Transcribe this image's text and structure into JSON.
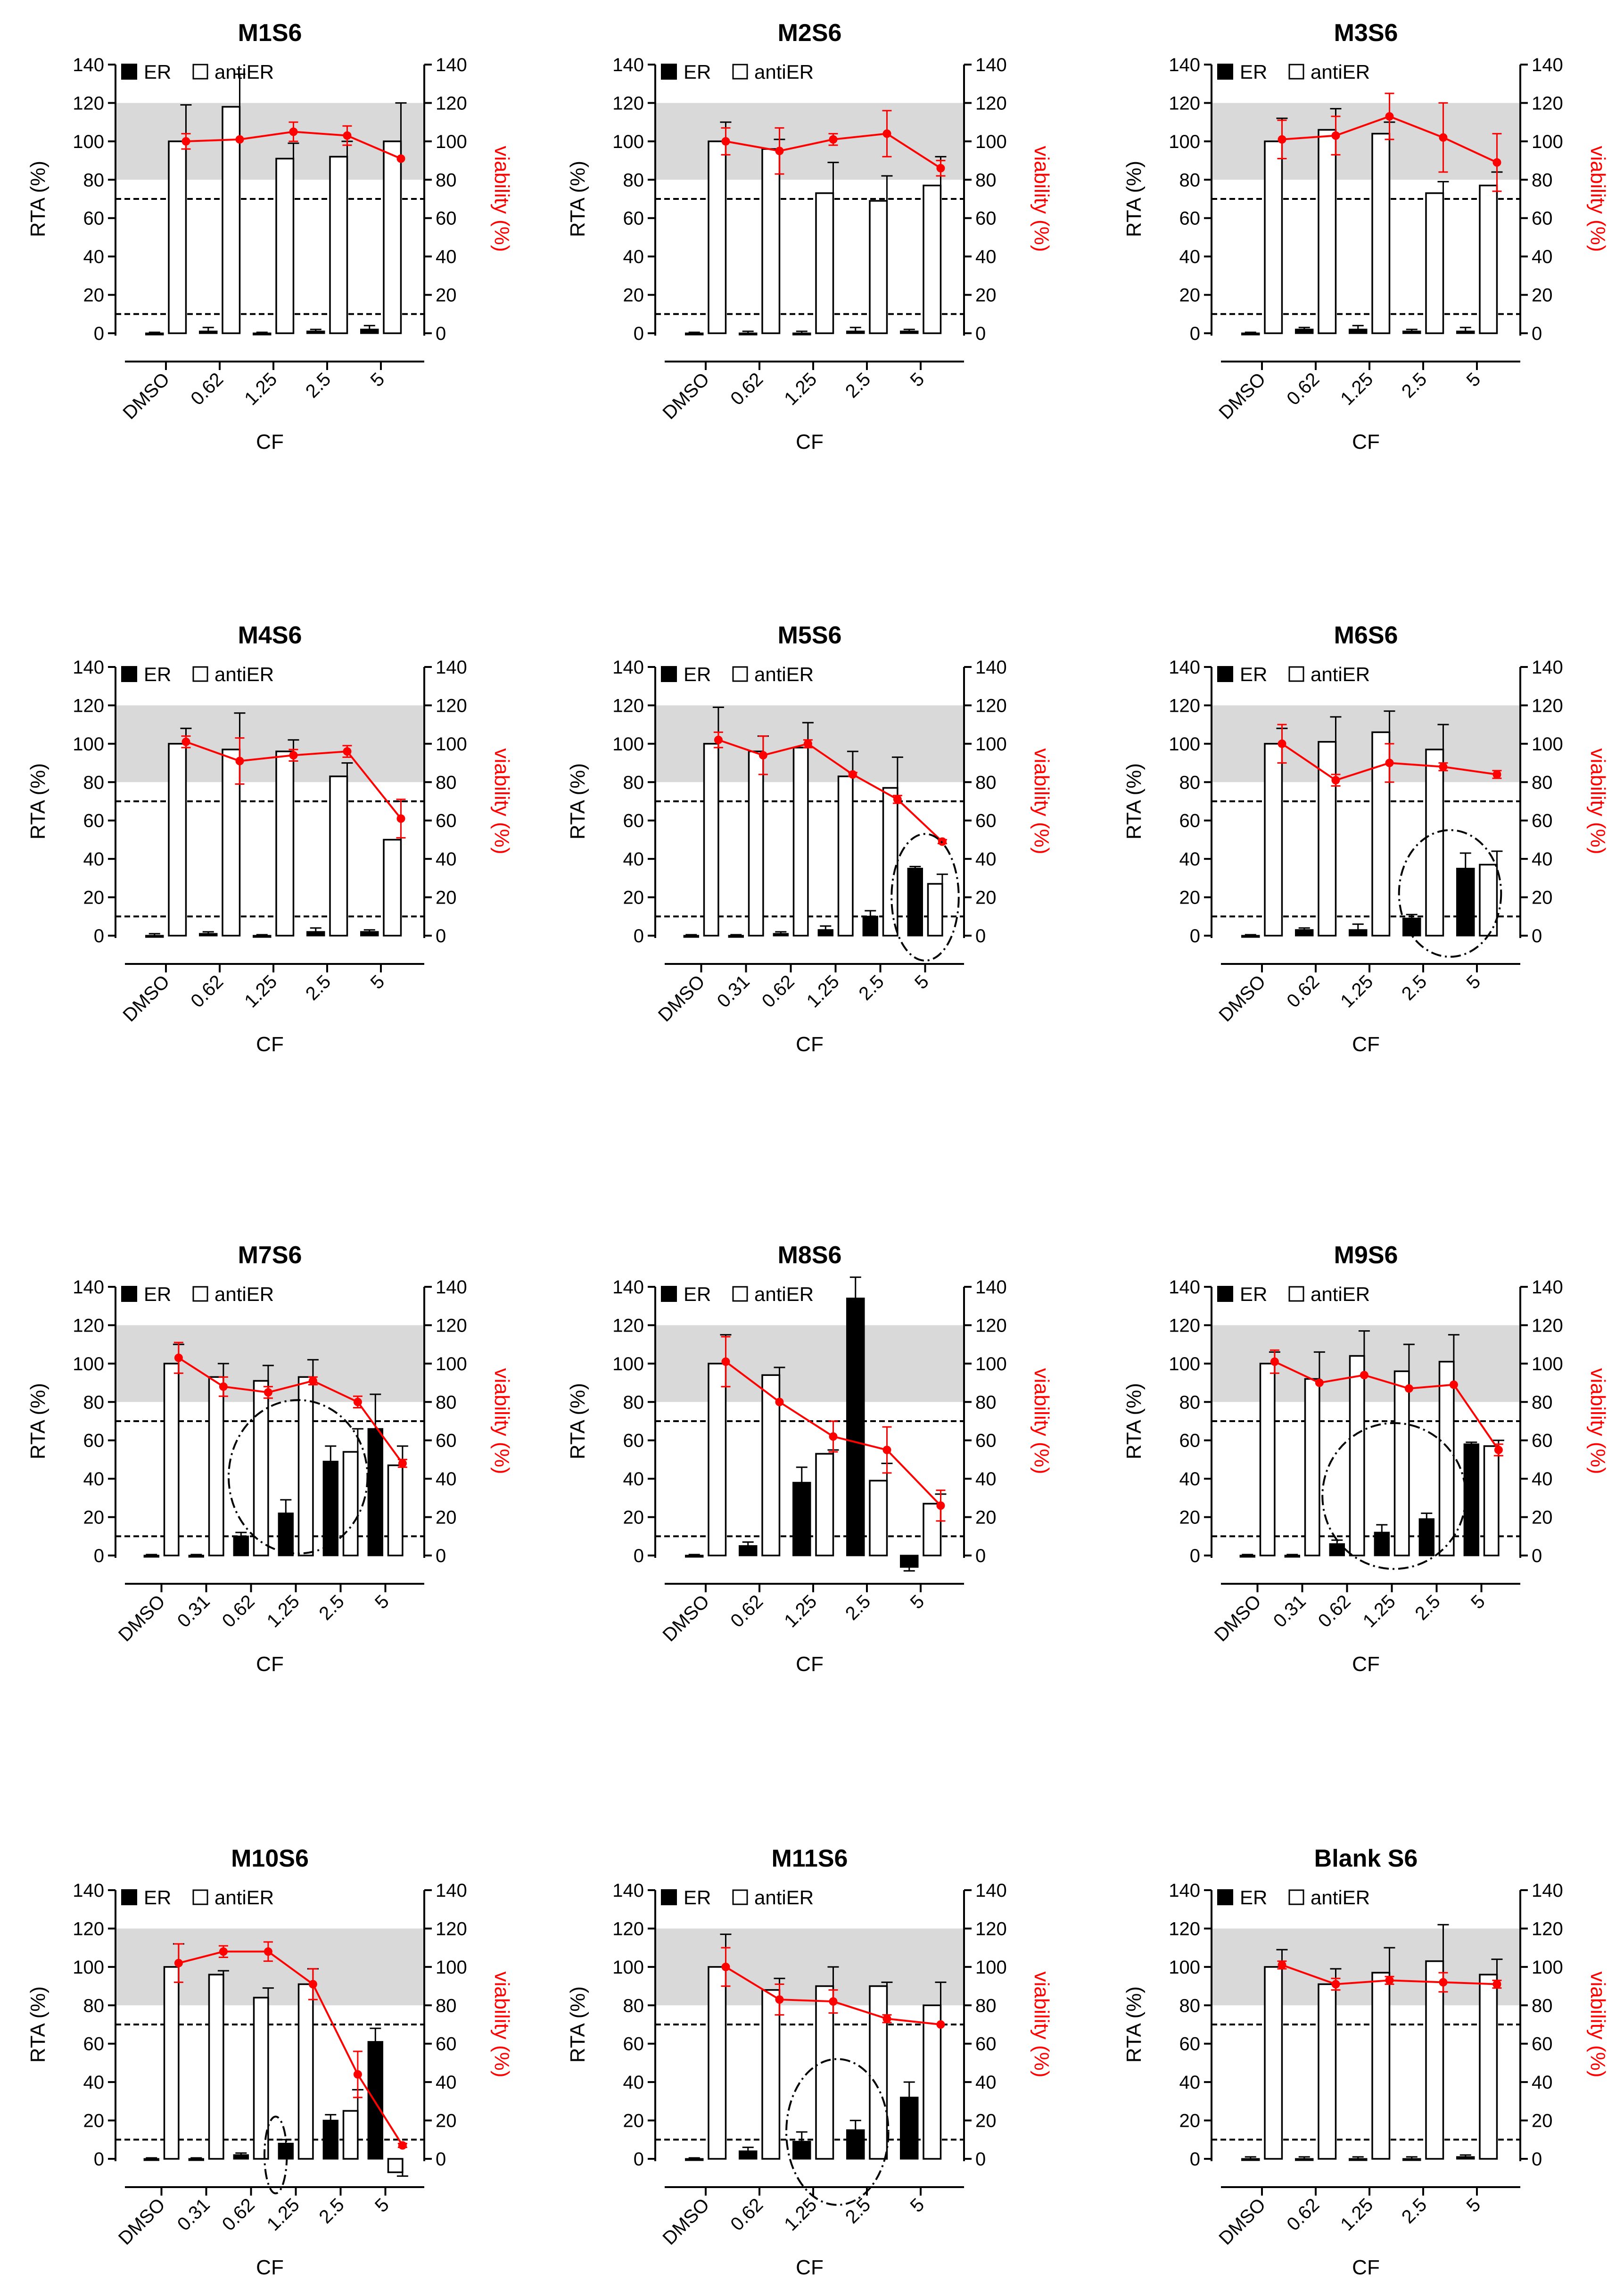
{
  "figure": {
    "shared": {
      "xlabel": "CF",
      "ylabel_left": "RTA (%)",
      "ylabel_left_alt": "RTA  (%)",
      "ylabel_right": "viability (%)",
      "legend_er": "ER",
      "legend_antier": "antiER",
      "y_ticks": [
        "0",
        "20",
        "40",
        "60",
        "80",
        "100",
        "120",
        "140"
      ]
    },
    "colors": {
      "er": "#000000",
      "antier": "#ffffff",
      "viability": "#ff0000",
      "band": "#d9d9d9",
      "axis": "#000000"
    }
  },
  "chart_data": [
    {
      "type": "bar",
      "title": "M1S6",
      "categories": [
        "DMSO",
        "0.62",
        "1.25",
        "2.5",
        "5"
      ],
      "xlabel": "CF",
      "ylabel": "RTA (%)",
      "y2label": "viability (%)",
      "ylim": [
        0,
        140
      ],
      "y2lim": [
        0,
        140
      ],
      "band": [
        80,
        120
      ],
      "thresholds": [
        70,
        10
      ],
      "series": [
        {
          "name": "ER",
          "values": [
            0,
            1,
            0,
            1,
            2
          ],
          "errors": [
            0.5,
            2,
            0.5,
            1,
            2
          ]
        },
        {
          "name": "antiER",
          "values": [
            100,
            118,
            91,
            92,
            100
          ],
          "errors": [
            19,
            17,
            8,
            8,
            20
          ]
        }
      ],
      "viability": {
        "values": [
          100,
          101,
          105,
          103,
          91
        ],
        "errors": [
          4,
          0,
          5,
          5,
          0
        ]
      },
      "ellipses": []
    },
    {
      "type": "bar",
      "title": "M2S6",
      "categories": [
        "DMSO",
        "0.62",
        "1.25",
        "2.5",
        "5"
      ],
      "xlabel": "CF",
      "ylabel": "RTA (%)",
      "y2label": "viability (%)",
      "ylim": [
        0,
        140
      ],
      "y2lim": [
        0,
        140
      ],
      "band": [
        80,
        120
      ],
      "thresholds": [
        70,
        10
      ],
      "series": [
        {
          "name": "ER",
          "values": [
            0,
            0,
            0,
            1,
            1
          ],
          "errors": [
            0.5,
            1,
            1,
            2,
            1
          ]
        },
        {
          "name": "antiER",
          "values": [
            100,
            96,
            73,
            69,
            77
          ],
          "errors": [
            10,
            5,
            16,
            13,
            15
          ]
        }
      ],
      "viability": {
        "values": [
          100,
          95,
          101,
          104,
          86
        ],
        "errors": [
          7,
          12,
          3,
          12,
          4
        ]
      },
      "ellipses": []
    },
    {
      "type": "bar",
      "title": "M3S6",
      "categories": [
        "DMSO",
        "0.62",
        "1.25",
        "2.5",
        "5"
      ],
      "xlabel": "CF",
      "ylabel": "RTA (%)",
      "y2label": "viability (%)",
      "ylim": [
        0,
        140
      ],
      "y2lim": [
        0,
        140
      ],
      "band": [
        80,
        120
      ],
      "thresholds": [
        70,
        10
      ],
      "series": [
        {
          "name": "ER",
          "values": [
            0,
            2,
            2,
            1,
            1
          ],
          "errors": [
            0.5,
            1,
            2,
            1,
            2
          ]
        },
        {
          "name": "antiER",
          "values": [
            100,
            106,
            104,
            73,
            77
          ],
          "errors": [
            12,
            11,
            6,
            6,
            7
          ]
        }
      ],
      "viability": {
        "values": [
          101,
          103,
          113,
          102,
          89
        ],
        "errors": [
          10,
          10,
          12,
          18,
          15
        ]
      },
      "ellipses": []
    },
    {
      "type": "bar",
      "title": "M4S6",
      "categories": [
        "DMSO",
        "0.62",
        "1.25",
        "2.5",
        "5"
      ],
      "xlabel": "CF",
      "ylabel": "RTA (%)",
      "y2label": "viability (%)",
      "ylim": [
        0,
        140
      ],
      "y2lim": [
        0,
        140
      ],
      "band": [
        80,
        120
      ],
      "thresholds": [
        70,
        10
      ],
      "series": [
        {
          "name": "ER",
          "values": [
            0,
            1,
            0,
            2,
            2
          ],
          "errors": [
            1,
            1,
            0.5,
            2,
            1
          ]
        },
        {
          "name": "antiER",
          "values": [
            100,
            97,
            96,
            83,
            50
          ],
          "errors": [
            8,
            19,
            6,
            7,
            20
          ]
        }
      ],
      "viability": {
        "values": [
          101,
          91,
          94,
          96,
          61
        ],
        "errors": [
          3,
          12,
          3,
          3,
          10
        ]
      },
      "ellipses": []
    },
    {
      "type": "bar",
      "title": "M5S6",
      "categories": [
        "DMSO",
        "0.31",
        "0.62",
        "1.25",
        "2.5",
        "5"
      ],
      "xlabel": "CF",
      "ylabel": "RTA  (%)",
      "y2label": "viability (%)",
      "ylim": [
        0,
        140
      ],
      "y2lim": [
        0,
        140
      ],
      "band": [
        80,
        120
      ],
      "thresholds": [
        70,
        10
      ],
      "series": [
        {
          "name": "ER",
          "values": [
            0,
            0,
            1,
            3,
            10,
            35
          ],
          "errors": [
            0.5,
            0.5,
            1,
            2,
            3,
            1
          ]
        },
        {
          "name": "antiER",
          "values": [
            100,
            96,
            98,
            83,
            77,
            27
          ],
          "errors": [
            19,
            8,
            13,
            13,
            16,
            5
          ]
        }
      ],
      "viability": {
        "values": [
          102,
          94,
          100,
          84,
          71,
          49
        ],
        "errors": [
          4,
          10,
          2,
          1,
          2,
          1
        ]
      },
      "ellipses": [
        {
          "cx": 5.5,
          "cy": 20,
          "rx": 0.75,
          "ry": 33
        }
      ]
    },
    {
      "type": "bar",
      "title": "M6S6",
      "categories": [
        "DMSO",
        "0.62",
        "1.25",
        "2.5",
        "5"
      ],
      "xlabel": "CF",
      "ylabel": "RTA (%)",
      "y2label": "viability (%)",
      "ylim": [
        0,
        140
      ],
      "y2lim": [
        0,
        140
      ],
      "band": [
        80,
        120
      ],
      "thresholds": [
        70,
        10
      ],
      "series": [
        {
          "name": "ER",
          "values": [
            0,
            3,
            3,
            9,
            35
          ],
          "errors": [
            0.5,
            1,
            3,
            2,
            8
          ]
        },
        {
          "name": "antiER",
          "values": [
            100,
            101,
            106,
            97,
            37
          ],
          "errors": [
            8,
            13,
            11,
            13,
            7
          ]
        }
      ],
      "viability": {
        "values": [
          100,
          81,
          90,
          88,
          84
        ],
        "errors": [
          10,
          3,
          10,
          2,
          2
        ]
      },
      "ellipses": [
        {
          "cx": 4.0,
          "cy": 22,
          "rx": 0.95,
          "ry": 33
        }
      ]
    },
    {
      "type": "bar",
      "title": "M7S6",
      "categories": [
        "DMSO",
        "0.31",
        "0.62",
        "1.25",
        "2.5",
        "5"
      ],
      "xlabel": "CF",
      "ylabel": "RTA (%)",
      "y2label": "viability (%)",
      "ylim": [
        0,
        140
      ],
      "y2lim": [
        0,
        140
      ],
      "band": [
        80,
        120
      ],
      "thresholds": [
        70,
        10
      ],
      "series": [
        {
          "name": "ER",
          "values": [
            0,
            0,
            10,
            22,
            49,
            66
          ],
          "errors": [
            0.5,
            0.5,
            2,
            7,
            8,
            18
          ]
        },
        {
          "name": "antiER",
          "values": [
            100,
            93,
            91,
            93,
            54,
            47
          ],
          "errors": [
            10,
            7,
            8,
            9,
            12,
            10
          ]
        }
      ],
      "viability": {
        "values": [
          103,
          88,
          85,
          91,
          80,
          48
        ],
        "errors": [
          8,
          5,
          3,
          2,
          3,
          2
        ]
      },
      "ellipses": [
        {
          "cx": 3.55,
          "cy": 41,
          "rx": 1.55,
          "ry": 40
        }
      ]
    },
    {
      "type": "bar",
      "title": "M8S6",
      "categories": [
        "DMSO",
        "0.62",
        "1.25",
        "2.5",
        "5"
      ],
      "xlabel": "CF",
      "ylabel": "RTA (%)",
      "y2label": "viability (%)",
      "ylim": [
        0,
        140
      ],
      "y2lim": [
        0,
        140
      ],
      "band": [
        80,
        120
      ],
      "thresholds": [
        70,
        10
      ],
      "series": [
        {
          "name": "ER",
          "values": [
            0,
            5,
            38,
            134,
            -6
          ],
          "errors": [
            0.5,
            2,
            8,
            11,
            2
          ]
        },
        {
          "name": "antiER",
          "values": [
            100,
            94,
            53,
            39,
            27
          ],
          "errors": [
            15,
            4,
            2,
            9,
            5
          ]
        }
      ],
      "viability": {
        "values": [
          101,
          80,
          62,
          55,
          26
        ],
        "errors": [
          13,
          0,
          8,
          12,
          8
        ]
      },
      "ellipses": []
    },
    {
      "type": "bar",
      "title": "M9S6",
      "categories": [
        "DMSO",
        "0.31",
        "0.62",
        "1.25",
        "2.5",
        "5"
      ],
      "xlabel": "CF",
      "ylabel": "RTA (%)",
      "y2label": "viability (%)",
      "ylim": [
        0,
        140
      ],
      "y2lim": [
        0,
        140
      ],
      "band": [
        80,
        120
      ],
      "thresholds": [
        70,
        10
      ],
      "series": [
        {
          "name": "ER",
          "values": [
            0,
            0,
            6,
            12,
            19,
            58
          ],
          "errors": [
            0.5,
            0.5,
            2,
            4,
            3,
            1
          ]
        },
        {
          "name": "antiER",
          "values": [
            100,
            92,
            104,
            96,
            101,
            57
          ],
          "errors": [
            6,
            14,
            13,
            14,
            14,
            3
          ]
        }
      ],
      "viability": {
        "values": [
          101,
          90,
          94,
          87,
          89,
          55
        ],
        "errors": [
          6,
          0,
          0,
          0,
          0,
          3
        ]
      },
      "ellipses": [
        {
          "cx": 3.55,
          "cy": 31,
          "rx": 1.6,
          "ry": 38
        }
      ]
    },
    {
      "type": "bar",
      "title": "M10S6",
      "categories": [
        "DMSO",
        "0.31",
        "0.62",
        "1.25",
        "2.5",
        "5"
      ],
      "xlabel": "CF",
      "ylabel": "RTA (%)",
      "y2label": "viability (%)",
      "ylim": [
        0,
        140
      ],
      "y2lim": [
        0,
        140
      ],
      "band": [
        80,
        120
      ],
      "thresholds": [
        70,
        10
      ],
      "series": [
        {
          "name": "ER",
          "values": [
            0,
            0,
            2,
            8,
            20,
            61
          ],
          "errors": [
            0.5,
            0.5,
            1,
            2,
            3,
            7
          ]
        },
        {
          "name": "antiER",
          "values": [
            100,
            96,
            84,
            91,
            25,
            -7
          ],
          "errors": [
            12,
            2,
            5,
            8,
            11,
            2
          ]
        }
      ],
      "viability": {
        "values": [
          102,
          108,
          108,
          91,
          44,
          7
        ],
        "errors": [
          10,
          3,
          5,
          8,
          12,
          1
        ]
      },
      "ellipses": [
        {
          "cx": 3.05,
          "cy": 2,
          "rx": 0.25,
          "ry": 20
        }
      ]
    },
    {
      "type": "bar",
      "title": "M11S6",
      "categories": [
        "DMSO",
        "0.62",
        "1.25",
        "2.5",
        "5"
      ],
      "xlabel": "CF",
      "ylabel": "RTA (%)",
      "y2label": "viability (%)",
      "ylim": [
        0,
        140
      ],
      "y2lim": [
        0,
        140
      ],
      "band": [
        80,
        120
      ],
      "thresholds": [
        70,
        10
      ],
      "series": [
        {
          "name": "ER",
          "values": [
            0,
            4,
            9,
            15,
            32
          ],
          "errors": [
            0.5,
            2,
            5,
            5,
            8
          ]
        },
        {
          "name": "antiER",
          "values": [
            100,
            88,
            90,
            90,
            80
          ],
          "errors": [
            17,
            6,
            10,
            2,
            12
          ]
        }
      ],
      "viability": {
        "values": [
          100,
          83,
          82,
          73,
          70
        ],
        "errors": [
          10,
          8,
          6,
          2,
          0
        ]
      },
      "ellipses": [
        {
          "cx": 2.95,
          "cy": 14,
          "rx": 0.95,
          "ry": 38
        }
      ]
    },
    {
      "type": "bar",
      "title": "Blank S6",
      "categories": [
        "DMSO",
        "0.62",
        "1.25",
        "2.5",
        "5"
      ],
      "xlabel": "CF",
      "ylabel": "RTA (%)",
      "y2label": "viability (%)",
      "ylim": [
        0,
        140
      ],
      "y2lim": [
        0,
        140
      ],
      "band": [
        80,
        120
      ],
      "thresholds": [
        70,
        10
      ],
      "series": [
        {
          "name": "ER",
          "values": [
            0,
            0,
            0,
            0,
            1
          ],
          "errors": [
            1,
            1,
            1,
            1,
            1
          ]
        },
        {
          "name": "antiER",
          "values": [
            100,
            91,
            97,
            103,
            96
          ],
          "errors": [
            9,
            8,
            13,
            19,
            8
          ]
        }
      ],
      "viability": {
        "values": [
          101,
          91,
          93,
          92,
          91
        ],
        "errors": [
          2,
          3,
          2,
          5,
          2
        ]
      },
      "ellipses": []
    }
  ]
}
